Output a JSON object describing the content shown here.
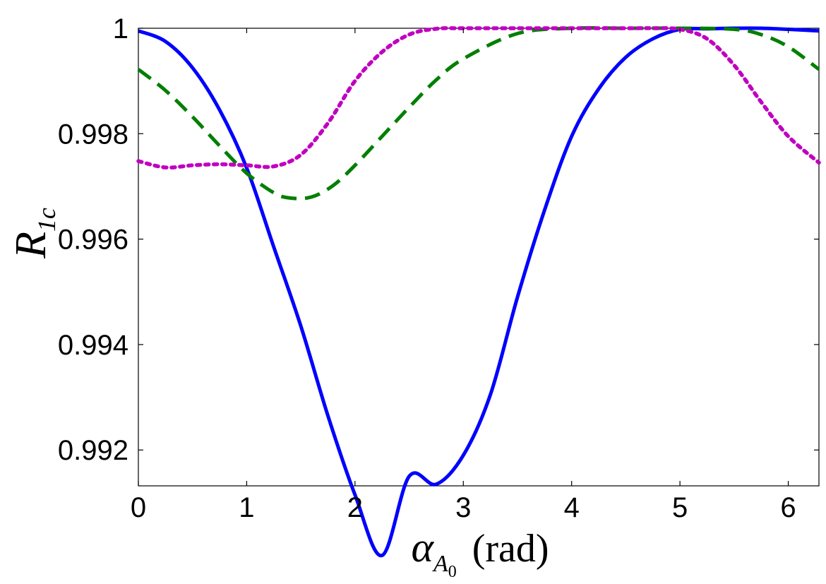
{
  "chart_data": {
    "type": "line",
    "title": "",
    "xlabel": {
      "main": "α",
      "sub": "A",
      "subsub": "0",
      "unit": "(rad)"
    },
    "ylabel": {
      "main": "R",
      "sub": "1c"
    },
    "xlim": [
      0,
      6.2832
    ],
    "ylim": [
      0.99132,
      1.0
    ],
    "xticks": [
      0,
      1,
      2,
      3,
      4,
      5,
      6
    ],
    "xtick_labels": [
      "0",
      "1",
      "2",
      "3",
      "4",
      "5",
      "6"
    ],
    "yticks": [
      0.992,
      0.994,
      0.996,
      0.998,
      1.0
    ],
    "ytick_labels": [
      "0.992",
      "0.994",
      "0.996",
      "0.998",
      "1"
    ],
    "grid": false,
    "legend": "none",
    "series": [
      {
        "style": "solid",
        "color": "#0000ff",
        "x": [
          0,
          0.25,
          0.5,
          0.75,
          1.0,
          1.25,
          1.5,
          1.75,
          2.0,
          2.25,
          2.5,
          2.75,
          3.0,
          3.25,
          3.5,
          3.75,
          4.0,
          4.25,
          4.5,
          4.75,
          5.0,
          5.25,
          5.5,
          5.75,
          6.0,
          6.2832
        ],
        "y": [
          0.99995,
          0.99975,
          0.99925,
          0.99845,
          0.99735,
          0.99585,
          0.99435,
          0.99265,
          0.99115,
          0.99,
          0.9915,
          0.99135,
          0.9919,
          0.99305,
          0.9949,
          0.99655,
          0.99795,
          0.99885,
          0.99945,
          0.9998,
          0.99998,
          0.99999,
          1.0,
          1.0,
          0.99998,
          0.99995
        ]
      },
      {
        "style": "dashed",
        "color": "#007f00",
        "x": [
          0,
          0.25,
          0.5,
          0.75,
          1.0,
          1.25,
          1.4,
          1.6,
          1.8,
          2.0,
          2.25,
          2.5,
          2.75,
          3.0,
          3.5,
          4.0,
          4.5,
          5.0,
          5.5,
          5.75,
          6.0,
          6.2832
        ],
        "y": [
          0.99922,
          0.99882,
          0.99832,
          0.99777,
          0.99725,
          0.99688,
          0.99678,
          0.9968,
          0.99702,
          0.9974,
          0.99795,
          0.9985,
          0.99902,
          0.99942,
          0.9999,
          1.0,
          1.0,
          1.0,
          0.99998,
          0.99988,
          0.99965,
          0.99922
        ]
      },
      {
        "style": "dotted",
        "color": "#c000c0",
        "x": [
          0,
          0.25,
          0.5,
          0.75,
          1.0,
          1.25,
          1.5,
          1.75,
          2.0,
          2.25,
          2.5,
          2.75,
          3.0,
          3.5,
          4.0,
          4.5,
          4.75,
          5.0,
          5.25,
          5.5,
          5.75,
          6.0,
          6.2832
        ],
        "y": [
          0.99748,
          0.99736,
          0.9974,
          0.99742,
          0.9974,
          0.99738,
          0.9976,
          0.9982,
          0.999,
          0.99955,
          0.99988,
          0.99999,
          1.0,
          1.0,
          1.0,
          1.0,
          1.0,
          0.99998,
          0.9998,
          0.9993,
          0.9986,
          0.99795,
          0.99745
        ]
      }
    ]
  }
}
